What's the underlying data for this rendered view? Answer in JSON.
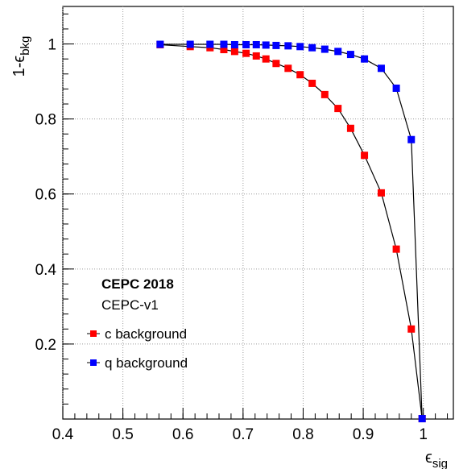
{
  "chart_data": {
    "type": "line",
    "xlabel": {
      "main": "ϵ",
      "sub": "sig"
    },
    "ylabel": {
      "main": "1-ϵ",
      "sub": "bkg"
    },
    "xlim": [
      0.4,
      1.05
    ],
    "ylim": [
      0.0,
      1.1
    ],
    "xticks": [
      0.4,
      0.5,
      0.6,
      0.7,
      0.8,
      0.9,
      1.0
    ],
    "yticks": [
      0.2,
      0.4,
      0.6,
      0.8,
      1.0
    ],
    "xtick_labels": [
      "0.4",
      "0.5",
      "0.6",
      "0.7",
      "0.8",
      "0.9",
      "1"
    ],
    "ytick_labels": [
      "0.2",
      "0.4",
      "0.6",
      "0.8",
      "1"
    ],
    "grid": true,
    "legend_position": "bottom-left",
    "annotation_title": "CEPC 2018",
    "annotation_subtitle": "CEPC-v1",
    "series": [
      {
        "name": "c background",
        "color": "#ff0000",
        "marker": "square",
        "x": [
          0.562,
          0.612,
          0.645,
          0.668,
          0.686,
          0.705,
          0.722,
          0.738,
          0.755,
          0.775,
          0.795,
          0.815,
          0.836,
          0.858,
          0.879,
          0.902,
          0.93,
          0.955,
          0.98,
          0.998
        ],
        "y": [
          0.998,
          0.993,
          0.99,
          0.985,
          0.98,
          0.975,
          0.968,
          0.96,
          0.948,
          0.935,
          0.918,
          0.895,
          0.865,
          0.828,
          0.775,
          0.703,
          0.603,
          0.453,
          0.24,
          0.001
        ]
      },
      {
        "name": "q background",
        "color": "#0000ff",
        "marker": "square",
        "x": [
          0.562,
          0.612,
          0.645,
          0.668,
          0.686,
          0.705,
          0.722,
          0.738,
          0.755,
          0.775,
          0.795,
          0.815,
          0.836,
          0.858,
          0.879,
          0.902,
          0.93,
          0.955,
          0.98,
          0.998
        ],
        "y": [
          0.999,
          0.999,
          0.999,
          0.999,
          0.998,
          0.998,
          0.998,
          0.997,
          0.996,
          0.995,
          0.993,
          0.99,
          0.986,
          0.98,
          0.972,
          0.96,
          0.935,
          0.882,
          0.745,
          0.001
        ]
      }
    ]
  }
}
